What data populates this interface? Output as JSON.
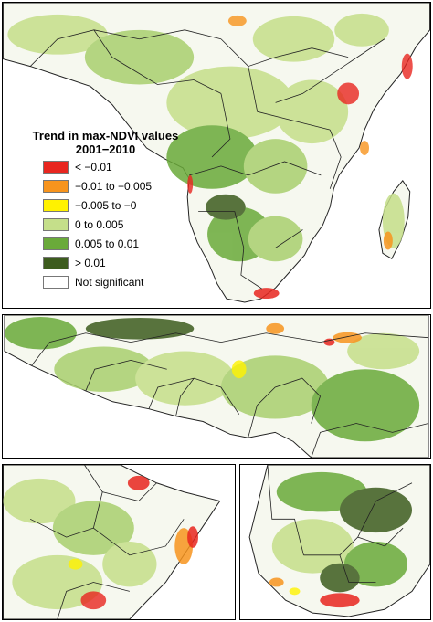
{
  "legend": {
    "title_line1": "Trend in max-NDVI values",
    "title_line2": "2001−2010",
    "items": [
      {
        "label": "< −0.01",
        "color": "#e8261f"
      },
      {
        "label": "−0.01 to −0.005",
        "color": "#f7941d"
      },
      {
        "label": "−0.005 to −0",
        "color": "#fff200"
      },
      {
        "label": "0 to 0.005",
        "color": "#c5df8a"
      },
      {
        "label": "0.005 to 0.01",
        "color": "#6aaa3a"
      },
      {
        "label": "> 0.01",
        "color": "#3d5c1e"
      },
      {
        "label": "Not significant",
        "color": "#ffffff"
      }
    ]
  },
  "panels": [
    "africa-overview",
    "west-africa-detail",
    "horn-of-africa-detail",
    "southern-africa-detail"
  ]
}
